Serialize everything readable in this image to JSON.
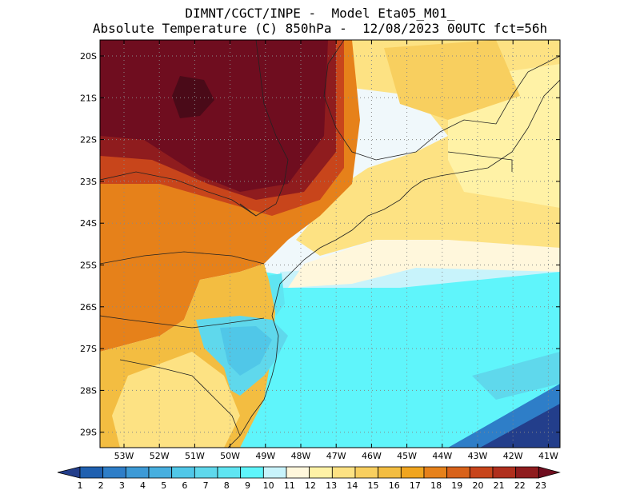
{
  "header": {
    "line1": "DIMNT/CGCT/INPE -  Model Eta05_M01_",
    "line2": "Absolute Temperature (C) 850hPa -  12/08/2023 00UTC fct=56h"
  },
  "axes": {
    "lat_labels": [
      "20S",
      "21S",
      "22S",
      "23S",
      "24S",
      "25S",
      "26S",
      "27S",
      "28S",
      "29S"
    ],
    "lon_labels": [
      "53W",
      "52W",
      "51W",
      "50W",
      "49W",
      "48W",
      "47W",
      "46W",
      "45W",
      "44W",
      "43W",
      "42W",
      "41W"
    ]
  },
  "colorbar": {
    "labels": [
      "1",
      "2",
      "3",
      "4",
      "5",
      "6",
      "7",
      "8",
      "9",
      "10",
      "11",
      "12",
      "13",
      "14",
      "15",
      "16",
      "17",
      "18",
      "19",
      "20",
      "21",
      "22",
      "23"
    ],
    "colors": [
      "#233e8b",
      "#1f60b0",
      "#2e7ec8",
      "#3d9ad6",
      "#47afdf",
      "#50c7e8",
      "#5fd8ec",
      "#5fe5f2",
      "#5ff5fb",
      "#c8f3fb",
      "#fff7dc",
      "#fff2a6",
      "#fde283",
      "#f8cf5f",
      "#f3bd41",
      "#f0a51f",
      "#e6811a",
      "#d8621a",
      "#c8451b",
      "#b02f1d",
      "#8f1c1e",
      "#6f0d1f"
    ]
  }
}
